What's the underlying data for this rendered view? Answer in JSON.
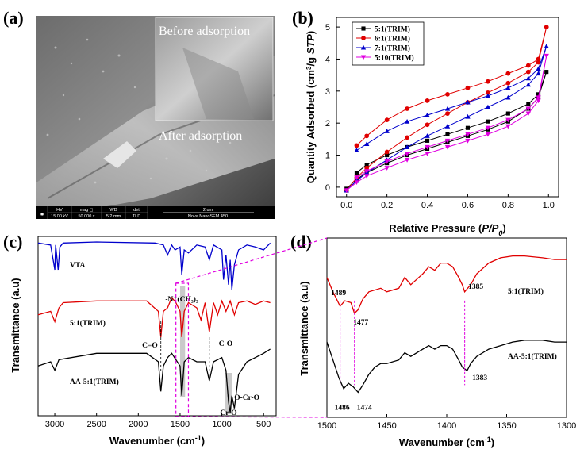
{
  "panels": {
    "a": {
      "label": "(a)",
      "inset_caption": "Before adsorption",
      "main_caption": "After adsorption",
      "databar": {
        "h_hv": "HV",
        "h_mag": "mag ◻",
        "h_wd": "WD",
        "h_det": "det",
        "v_hv": "15.00 kV",
        "v_mag": "50 000 x",
        "v_wd": "5.2 mm",
        "v_det": "TLD",
        "scale": "2 um",
        "instrument": "Nova NanoSEM 450"
      }
    },
    "b": {
      "label": "(b)",
      "ylabel": "Quantity Adsorbed (cm³/g STP)",
      "xlabel": "Relative Pressure (P/P0)",
      "xticks": [
        "0.0",
        "0.2",
        "0.4",
        "0.6",
        "0.8",
        "1.0"
      ],
      "yticks": [
        "0",
        "1",
        "2",
        "3",
        "4",
        "5"
      ],
      "legend": [
        "5:1(TRIM)",
        "6:1(TRIM)",
        "7:1(TRIM)",
        "5:10(TRIM)"
      ],
      "colors": [
        "#000000",
        "#e00000",
        "#0000cc",
        "#e000e0"
      ]
    },
    "c": {
      "label": "(c)",
      "ylabel": "Transmittance (a.u)",
      "xlabel": "Wavenumber (cm⁻¹)",
      "xticks": [
        "3000",
        "2500",
        "2000",
        "1500",
        "1000",
        "500"
      ],
      "series_labels": [
        "VTA",
        "5:1(TRIM)",
        "AA-5:1(TRIM)"
      ],
      "annotations": [
        "-N⁺(CH₃)₃",
        "C=O",
        "C-O",
        "Cr-O",
        "O-Cr-O"
      ]
    },
    "d": {
      "label": "(d)",
      "ylabel": "Transmittance (a.u)",
      "xlabel": "Wavenumber (cm⁻¹)",
      "xticks": [
        "1500",
        "1450",
        "1400",
        "1350",
        "1300"
      ],
      "series_labels": [
        "5:1(TRIM)",
        "AA-5:1(TRIM)"
      ],
      "peaks_top": [
        "1489",
        "1477",
        "1385"
      ],
      "peaks_bottom": [
        "1486",
        "1474",
        "1383"
      ]
    }
  },
  "chart_data": [
    {
      "type": "line",
      "title": "",
      "xlabel": "Relative Pressure (P/P0)",
      "ylabel": "Quantity Adsorbed (cm3/g STP)",
      "xlim": [
        -0.05,
        1.05
      ],
      "ylim": [
        -0.3,
        5.3
      ],
      "series": [
        {
          "name": "5:1(TRIM)",
          "x": [
            0,
            0.05,
            0.1,
            0.2,
            0.3,
            0.4,
            0.5,
            0.6,
            0.7,
            0.8,
            0.9,
            0.95,
            0.99,
            0.95,
            0.9,
            0.8,
            0.7,
            0.6,
            0.5,
            0.4,
            0.3,
            0.2,
            0.1,
            0.05
          ],
          "y": [
            -0.05,
            0.25,
            0.45,
            0.75,
            1.0,
            1.2,
            1.4,
            1.6,
            1.8,
            2.05,
            2.45,
            2.8,
            3.6,
            2.9,
            2.6,
            2.3,
            2.05,
            1.85,
            1.65,
            1.45,
            1.25,
            1.0,
            0.7,
            0.45
          ]
        },
        {
          "name": "6:1(TRIM)",
          "x": [
            0,
            0.05,
            0.1,
            0.2,
            0.3,
            0.4,
            0.5,
            0.6,
            0.7,
            0.8,
            0.9,
            0.95,
            0.99,
            0.95,
            0.9,
            0.8,
            0.7,
            0.6,
            0.5,
            0.4,
            0.3,
            0.2,
            0.1,
            0.05
          ],
          "y": [
            -0.1,
            0.3,
            0.6,
            1.1,
            1.55,
            1.95,
            2.3,
            2.65,
            2.95,
            3.25,
            3.6,
            3.9,
            5.0,
            4.0,
            3.8,
            3.55,
            3.3,
            3.1,
            2.9,
            2.7,
            2.45,
            2.1,
            1.6,
            1.3
          ]
        },
        {
          "name": "7:1(TRIM)",
          "x": [
            0,
            0.05,
            0.1,
            0.2,
            0.3,
            0.4,
            0.5,
            0.6,
            0.7,
            0.8,
            0.9,
            0.95,
            0.99,
            0.95,
            0.9,
            0.8,
            0.7,
            0.6,
            0.5,
            0.4,
            0.3,
            0.2,
            0.1,
            0.05
          ],
          "y": [
            -0.1,
            0.2,
            0.45,
            0.85,
            1.25,
            1.6,
            1.9,
            2.2,
            2.5,
            2.8,
            3.2,
            3.55,
            4.4,
            3.7,
            3.4,
            3.1,
            2.85,
            2.65,
            2.45,
            2.25,
            2.05,
            1.75,
            1.35,
            1.15
          ]
        },
        {
          "name": "5:10(TRIM)",
          "x": [
            0,
            0.05,
            0.1,
            0.2,
            0.3,
            0.4,
            0.5,
            0.6,
            0.7,
            0.8,
            0.9,
            0.95,
            0.99,
            0.95,
            0.9,
            0.8,
            0.7,
            0.6,
            0.5,
            0.4,
            0.3,
            0.2,
            0.1,
            0.05
          ],
          "y": [
            -0.1,
            0.15,
            0.35,
            0.6,
            0.85,
            1.05,
            1.25,
            1.45,
            1.65,
            1.9,
            2.3,
            2.7,
            4.1,
            2.8,
            2.45,
            2.1,
            1.85,
            1.65,
            1.45,
            1.25,
            1.05,
            0.8,
            0.5,
            0.3
          ]
        }
      ]
    },
    {
      "type": "line",
      "title": "",
      "xlabel": "Wavenumber (cm-1)",
      "ylabel": "Transmittance (a.u)",
      "xlim": [
        3200,
        350
      ],
      "series": [
        {
          "name": "VTA",
          "x": [
            3200,
            3050,
            3000,
            2990,
            2960,
            2940,
            2900,
            2500,
            1800,
            1700,
            1650,
            1600,
            1560,
            1500,
            1480,
            1450,
            1400,
            1300,
            1200,
            1150,
            1100,
            1000,
            980,
            950,
            920,
            900,
            880,
            850,
            800,
            700,
            600,
            500,
            420
          ],
          "y": [
            0.92,
            0.9,
            0.65,
            0.9,
            0.65,
            0.88,
            0.92,
            0.93,
            0.92,
            0.9,
            0.8,
            0.9,
            0.85,
            0.88,
            0.6,
            0.85,
            0.82,
            0.9,
            0.88,
            0.75,
            0.9,
            0.85,
            0.55,
            0.8,
            0.5,
            0.75,
            0.45,
            0.7,
            0.85,
            0.9,
            0.88,
            0.85,
            0.92
          ]
        },
        {
          "name": "5:1(TRIM)",
          "x": [
            3200,
            3050,
            3000,
            2950,
            2900,
            2500,
            1900,
            1760,
            1730,
            1700,
            1650,
            1600,
            1550,
            1500,
            1480,
            1450,
            1400,
            1300,
            1250,
            1200,
            1150,
            1100,
            1050,
            1000,
            950,
            900,
            850,
            800,
            700,
            600,
            500,
            420
          ],
          "y": [
            0.48,
            0.5,
            0.44,
            0.52,
            0.55,
            0.56,
            0.56,
            0.5,
            0.35,
            0.5,
            0.52,
            0.58,
            0.55,
            0.5,
            0.35,
            0.5,
            0.55,
            0.52,
            0.45,
            0.55,
            0.38,
            0.55,
            0.48,
            0.56,
            0.5,
            0.56,
            0.48,
            0.55,
            0.56,
            0.54,
            0.56,
            0.55
          ]
        },
        {
          "name": "AA-5:1(TRIM)",
          "x": [
            3200,
            3050,
            3000,
            2950,
            2500,
            1900,
            1760,
            1730,
            1700,
            1650,
            1600,
            1500,
            1480,
            1450,
            1400,
            1300,
            1200,
            1150,
            1100,
            1000,
            950,
            920,
            900,
            880,
            850,
            800,
            700,
            600,
            500,
            420
          ],
          "y": [
            0.22,
            0.24,
            0.2,
            0.25,
            0.28,
            0.28,
            0.24,
            0.1,
            0.22,
            0.26,
            0.28,
            0.22,
            0.08,
            0.24,
            0.26,
            0.24,
            0.24,
            0.15,
            0.24,
            0.26,
            0.2,
            0.05,
            0.0,
            0.08,
            0.02,
            0.18,
            0.24,
            0.26,
            0.28,
            0.3
          ]
        }
      ],
      "annotations": [
        "-N⁺(CH₃)₃",
        "C=O",
        "C-O",
        "Cr-O",
        "O-Cr-O"
      ]
    },
    {
      "type": "line",
      "title": "",
      "xlabel": "Wavenumber (cm-1)",
      "ylabel": "Transmittance (a.u)",
      "xlim": [
        1500,
        1300
      ],
      "series": [
        {
          "name": "5:1(TRIM)",
          "x": [
            1500,
            1495,
            1492,
            1489,
            1485,
            1480,
            1477,
            1474,
            1470,
            1465,
            1455,
            1450,
            1440,
            1435,
            1430,
            1420,
            1415,
            1410,
            1405,
            1400,
            1395,
            1390,
            1387,
            1385,
            1380,
            1375,
            1365,
            1355,
            1345,
            1335,
            1320,
            1310,
            1300
          ],
          "y": [
            0.78,
            0.7,
            0.66,
            0.62,
            0.65,
            0.64,
            0.58,
            0.6,
            0.66,
            0.7,
            0.72,
            0.7,
            0.72,
            0.78,
            0.74,
            0.8,
            0.84,
            0.82,
            0.86,
            0.86,
            0.84,
            0.78,
            0.74,
            0.7,
            0.74,
            0.8,
            0.86,
            0.89,
            0.9,
            0.9,
            0.89,
            0.88,
            0.88
          ]
        },
        {
          "name": "AA-5:1(TRIM)",
          "x": [
            1500,
            1495,
            1490,
            1486,
            1482,
            1478,
            1474,
            1470,
            1465,
            1460,
            1455,
            1450,
            1440,
            1435,
            1430,
            1420,
            1415,
            1410,
            1405,
            1400,
            1395,
            1390,
            1387,
            1383,
            1380,
            1375,
            1365,
            1355,
            1345,
            1335,
            1320,
            1310,
            1300
          ],
          "y": [
            0.42,
            0.32,
            0.22,
            0.16,
            0.19,
            0.17,
            0.14,
            0.18,
            0.24,
            0.28,
            0.3,
            0.3,
            0.32,
            0.36,
            0.34,
            0.38,
            0.4,
            0.38,
            0.4,
            0.4,
            0.38,
            0.32,
            0.28,
            0.26,
            0.3,
            0.34,
            0.38,
            0.4,
            0.42,
            0.43,
            0.43,
            0.42,
            0.42
          ]
        }
      ]
    }
  ]
}
